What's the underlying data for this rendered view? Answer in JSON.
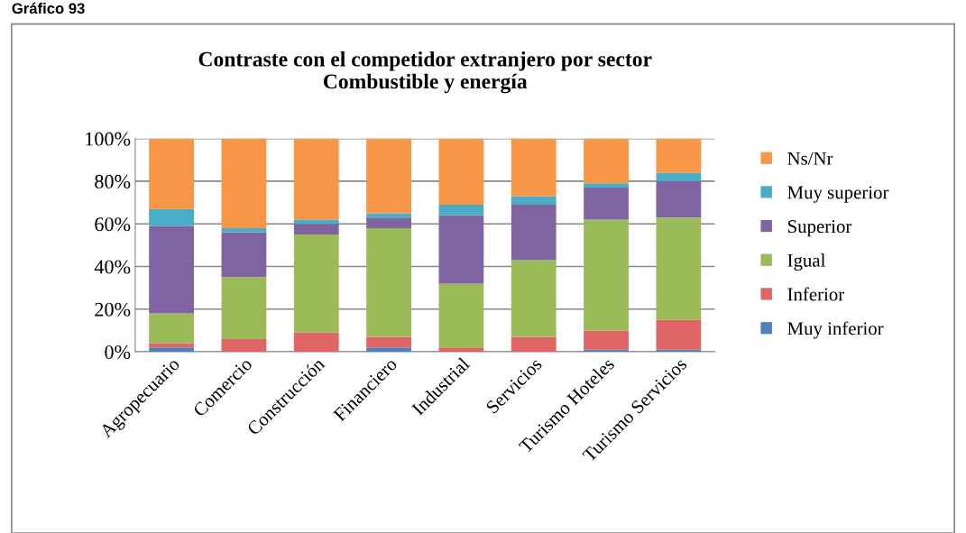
{
  "chart_data": {
    "type": "bar",
    "title": "Contraste con el competidor extranjero por sector\nCombustible y energía",
    "annotations": [
      "Gráfico 93"
    ],
    "categories": [
      "Agropecuario",
      "Comercio",
      "Construcción",
      "Financiero",
      "Industrial",
      "Servicios",
      "Turismo Hoteles",
      "Turismo Servicios"
    ],
    "stacked": true,
    "series": [
      {
        "name": "Muy inferior",
        "color": "#4f81bd",
        "values": [
          2,
          0,
          0,
          2,
          0,
          0,
          1,
          1
        ]
      },
      {
        "name": "Inferior",
        "color": "#e06666",
        "values": [
          2,
          6,
          9,
          5,
          2,
          7,
          9,
          14
        ]
      },
      {
        "name": "Igual",
        "color": "#9bbb59",
        "values": [
          14,
          29,
          46,
          51,
          30,
          36,
          52,
          48
        ]
      },
      {
        "name": "Superior",
        "color": "#8064a2",
        "values": [
          41,
          21,
          5,
          5,
          32,
          26,
          15,
          17
        ]
      },
      {
        "name": "Muy superior",
        "color": "#4bacc6",
        "values": [
          8,
          2,
          2,
          2,
          5,
          4,
          2,
          4
        ]
      },
      {
        "name": "Ns/Nr",
        "color": "#f79646",
        "values": [
          33,
          42,
          38,
          35,
          31,
          27,
          21,
          16
        ]
      }
    ],
    "ylim": [
      0,
      100
    ],
    "yticks": [
      {
        "value": 0,
        "label": "0%"
      },
      {
        "value": 20,
        "label": "20%"
      },
      {
        "value": 40,
        "label": "40%"
      },
      {
        "value": 60,
        "label": "60%"
      },
      {
        "value": 80,
        "label": "80%"
      },
      {
        "value": 100,
        "label": "100%"
      }
    ],
    "grid": "y",
    "legend": "right"
  }
}
